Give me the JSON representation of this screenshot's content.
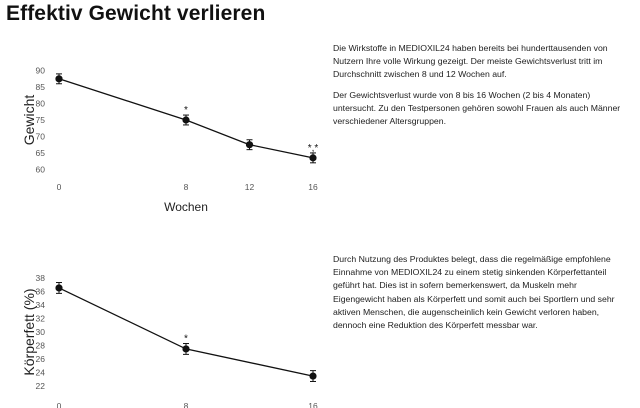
{
  "page": {
    "title": "Effektiv Gewicht verlieren"
  },
  "chart_data": [
    {
      "type": "line",
      "x": [
        0,
        8,
        12,
        16
      ],
      "series": [
        {
          "values": [
            87.5,
            75,
            67.5,
            63.5
          ],
          "error": [
            1.5,
            1.5,
            1.5,
            1.5
          ],
          "annotations": [
            "",
            "*",
            "",
            "*,*"
          ]
        }
      ],
      "xlabel": "Wochen",
      "ylabel": "Gewicht",
      "xticks": [
        "0",
        "8",
        "12",
        "16"
      ],
      "yticks": [
        "60",
        "65",
        "70",
        "75",
        "80",
        "85",
        "90"
      ],
      "xlim": [
        0,
        16
      ],
      "ylim": [
        58,
        92
      ],
      "grid": false
    },
    {
      "type": "line",
      "x": [
        0,
        8,
        16
      ],
      "series": [
        {
          "values": [
            36.5,
            27.5,
            23.5
          ],
          "error": [
            0.8,
            0.8,
            0.8
          ],
          "annotations": [
            "",
            "*",
            ""
          ]
        }
      ],
      "xlabel": "",
      "ylabel": "Körperfett (%)",
      "xticks": [
        "0",
        "8",
        "16"
      ],
      "yticks": [
        "22",
        "24",
        "26",
        "28",
        "30",
        "32",
        "34",
        "36",
        "38"
      ],
      "xlim": [
        0,
        16
      ],
      "ylim": [
        21,
        39
      ],
      "grid": false
    }
  ],
  "text": {
    "block1": [
      "Die Wirkstoffe in MEDIOXIL24 haben bereits bei hunderttausenden von Nutzern Ihre volle Wirkung gezeigt. Der meiste Gewichtsverlust tritt im Durchschnitt zwischen 8 und 12 Wochen auf.",
      "Der Gewichtsverlust wurde von 8 bis 16 Wochen (2 bis 4 Monaten) untersucht. Zu den Testpersonen gehören sowohl Frauen als auch Männer verschiedener Altersgruppen."
    ],
    "block2": [
      "Durch Nutzung des Produktes belegt, dass die regelmäßige empfohlene Einnahme von MEDIOXIL24 zu einem stetig sinkenden Körperfettanteil geführt hat. Dies ist in sofern bemerkenswert, da Muskeln mehr Eigengewicht haben als Körperfett und somit auch bei Sportlern und sehr aktiven Menschen, die augenscheinlich kein Gewicht verloren haben, dennoch eine Reduktion des Körperfett messbar war."
    ]
  }
}
